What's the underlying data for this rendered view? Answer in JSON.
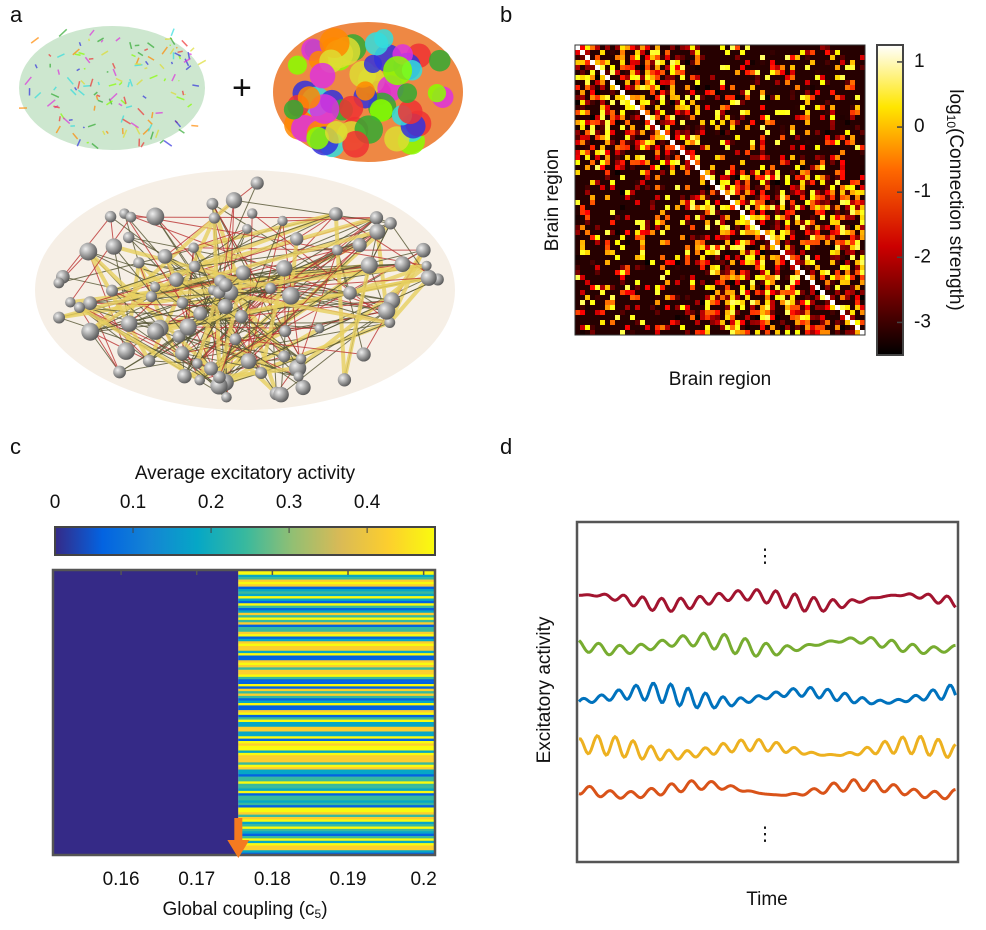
{
  "panel_a": {
    "label": "a",
    "plus": "+"
  },
  "panel_b": {
    "label": "b",
    "x_label": "Brain region",
    "y_label": "Brain region",
    "colorbar": {
      "label_prefix": "log",
      "label_subscript": "10",
      "label_suffix": "(Connection strength)",
      "lim": [
        -3.5,
        1.26
      ],
      "ticks": [
        -3,
        -2,
        -1,
        0,
        1
      ]
    }
  },
  "panel_c": {
    "label": "c",
    "colorbar": {
      "title": "Average excitatory activity",
      "lim": [
        0,
        0.487
      ],
      "ticks": [
        0,
        0.1,
        0.2,
        0.3,
        0.4
      ]
    },
    "x_label_prefix": "Global coupling (c",
    "x_label_subscript": "5",
    "x_label_suffix": ")",
    "xlim": [
      0.151,
      0.2015
    ],
    "xticks": [
      0.16,
      0.17,
      0.18,
      0.19,
      0.2
    ],
    "arrow_at": 0.1755
  },
  "panel_d": {
    "label": "d",
    "x_label": "Time",
    "y_label": "Excitatory activity",
    "ellipsis_top": "⋮",
    "ellipsis_bottom": "⋮",
    "trace_colors": [
      "#a2142f",
      "#77ac30",
      "#0072bd",
      "#edb120",
      "#d95319"
    ]
  }
}
